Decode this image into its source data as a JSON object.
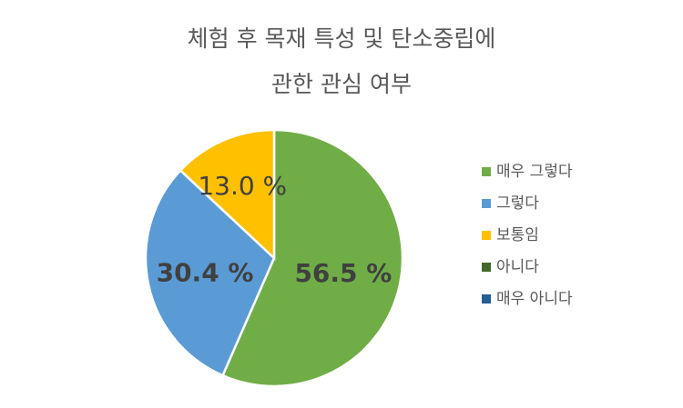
{
  "chart_data": {
    "type": "pie",
    "title": [
      "체험 후 목재 특성 및 탄소중립에",
      "관한 관심 여부"
    ],
    "categories": [
      "매우 그렇다",
      "그렇다",
      "보통임",
      "아니다",
      "매우 아니다"
    ],
    "values": [
      56.5,
      30.4,
      13.0,
      0,
      0
    ],
    "value_labels": [
      "56.5 %",
      "30.4 %",
      "13.0 %",
      null,
      null
    ],
    "colors": [
      "#70ad47",
      "#5b9bd5",
      "#ffc000",
      "#43682b",
      "#255e91"
    ],
    "legend": "right"
  }
}
